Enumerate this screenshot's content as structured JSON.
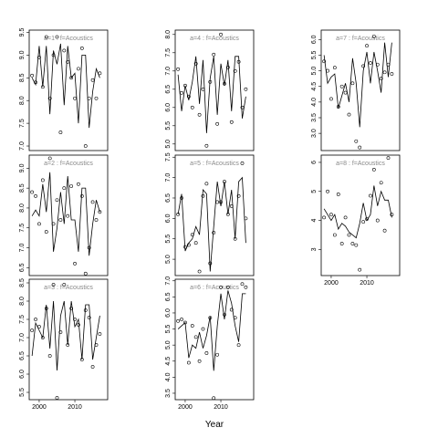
{
  "chart_data": [
    {
      "type": "scatter",
      "title": "a=1 : f=Acoustics",
      "x": [
        1998,
        1999,
        2000,
        2001,
        2002,
        2003,
        2004,
        2005,
        2006,
        2007,
        2008,
        2009,
        2010,
        2011,
        2012,
        2013,
        2014,
        2015,
        2016,
        2017
      ],
      "xlim": [
        1997.2,
        2019.2
      ],
      "ylim": [
        6.9,
        9.55
      ],
      "yticks": [
        {
          "value": 7,
          "label": "7.0"
        },
        7.5,
        {
          "value": 8,
          "label": "8.0"
        },
        8.5,
        {
          "value": 9,
          "label": "9.0"
        },
        9.5
      ],
      "series": [
        {
          "mark": "point",
          "color": "#000000",
          "values": [
            8.55,
            8.4,
            8.95,
            8.3,
            9.4,
            8.05,
            9.0,
            9.4,
            7.3,
            9.1,
            8.85,
            8.5,
            8.05,
            8.7,
            9.15,
            7.0,
            8.05,
            8.45,
            8.05,
            8.6
          ]
        },
        {
          "mark": "line",
          "color": "#000000",
          "values": [
            8.5,
            8.35,
            9.2,
            8.3,
            9.2,
            7.7,
            9.1,
            8.8,
            9.25,
            7.9,
            9.2,
            8.5,
            8.6,
            7.5,
            9.0,
            9.0,
            7.4,
            8.2,
            8.7,
            8.5
          ]
        }
      ]
    },
    {
      "type": "scatter",
      "title": "a=2 : f=Acoustics",
      "x": [
        1998,
        1999,
        2000,
        2001,
        2002,
        2003,
        2004,
        2005,
        2006,
        2007,
        2008,
        2009,
        2010,
        2011,
        2012,
        2013,
        2014,
        2015,
        2016,
        2017
      ],
      "xlim": [
        1997.2,
        2019.2
      ],
      "ylim": [
        6.3,
        9.33
      ],
      "yticks": [
        6.5,
        {
          "value": 7,
          "label": "7.0"
        },
        7.5,
        {
          "value": 8,
          "label": "8.0"
        },
        8.5,
        {
          "value": 9,
          "label": "9.0"
        }
      ],
      "series": [
        {
          "mark": "point",
          "color": "#000000",
          "values": [
            8.4,
            8.3,
            7.6,
            8.7,
            7.4,
            9.25,
            7.6,
            8.2,
            7.7,
            8.5,
            7.8,
            8.55,
            6.6,
            8.6,
            8.3,
            6.35,
            7.0,
            8.15,
            7.7,
            7.9
          ]
        },
        {
          "mark": "line",
          "color": "#000000",
          "values": [
            7.8,
            7.95,
            7.8,
            8.6,
            7.9,
            8.9,
            6.9,
            7.5,
            8.4,
            7.6,
            8.8,
            7.7,
            7.7,
            6.9,
            8.5,
            8.5,
            6.8,
            7.6,
            8.2,
            7.9
          ]
        }
      ]
    },
    {
      "type": "scatter",
      "title": "a=3 : f=Acoustics",
      "x": [
        1998,
        1999,
        2000,
        2001,
        2002,
        2003,
        2004,
        2005,
        2006,
        2007,
        2008,
        2009,
        2010,
        2011,
        2012,
        2013,
        2014,
        2015,
        2016,
        2017
      ],
      "xlim": [
        1997.2,
        2019.2
      ],
      "ylim": [
        5.3,
        8.6
      ],
      "xticks": [
        2000,
        2010
      ],
      "yticks": [
        5.5,
        {
          "value": 6,
          "label": "6.0"
        },
        6.5,
        {
          "value": 7,
          "label": "7.0"
        },
        7.5,
        {
          "value": 8,
          "label": "8.0"
        },
        8.5
      ],
      "series": [
        {
          "mark": "point",
          "color": "#000000",
          "values": [
            7.2,
            7.5,
            7.3,
            7.0,
            7.8,
            6.5,
            8.45,
            5.35,
            7.15,
            8.45,
            6.8,
            7.8,
            7.5,
            7.35,
            6.4,
            7.75,
            7.55,
            6.2,
            6.8,
            7.1
          ]
        },
        {
          "mark": "line",
          "color": "#000000",
          "values": [
            6.5,
            7.4,
            7.2,
            7.0,
            7.9,
            6.7,
            8.0,
            6.1,
            7.6,
            8.0,
            6.8,
            8.0,
            7.3,
            7.5,
            6.4,
            7.9,
            7.9,
            6.4,
            7.0,
            7.6
          ]
        }
      ]
    },
    {
      "type": "scatter",
      "title": "a=4 : f=Acoustics",
      "x": [
        1998,
        1999,
        2000,
        2001,
        2002,
        2003,
        2004,
        2005,
        2006,
        2007,
        2008,
        2009,
        2010,
        2011,
        2012,
        2013,
        2014,
        2015,
        2016,
        2017
      ],
      "xlim": [
        1997.2,
        2019.2
      ],
      "ylim": [
        4.82,
        8.12
      ],
      "yticks": [
        {
          "value": 5,
          "label": "5.0"
        },
        5.5,
        {
          "value": 6,
          "label": "6.0"
        },
        6.5,
        {
          "value": 7,
          "label": "7.0"
        },
        7.5,
        {
          "value": 8,
          "label": "8.0"
        }
      ],
      "series": [
        {
          "mark": "point",
          "color": "#000000",
          "values": [
            7.05,
            6.4,
            6.6,
            6.3,
            6.0,
            7.2,
            5.8,
            6.5,
            4.95,
            6.7,
            7.45,
            5.55,
            8.0,
            6.65,
            7.1,
            5.6,
            7.0,
            7.25,
            6.0,
            6.5
          ]
        },
        {
          "mark": "line",
          "color": "#000000",
          "values": [
            6.9,
            5.9,
            6.6,
            6.2,
            6.7,
            7.4,
            6.1,
            7.3,
            5.3,
            6.8,
            7.4,
            5.8,
            7.2,
            6.6,
            7.3,
            5.9,
            7.4,
            7.4,
            5.7,
            6.3
          ]
        }
      ]
    },
    {
      "type": "scatter",
      "title": "a=5 : f=Acoustics",
      "x": [
        1998,
        1999,
        2000,
        2001,
        2002,
        2003,
        2004,
        2005,
        2006,
        2007,
        2008,
        2009,
        2010,
        2011,
        2012,
        2013,
        2014,
        2015,
        2016,
        2017
      ],
      "xlim": [
        1997.2,
        2019.2
      ],
      "ylim": [
        4.6,
        7.55
      ],
      "yticks": [
        {
          "value": 5,
          "label": "5.0"
        },
        5.5,
        {
          "value": 6,
          "label": "6.0"
        },
        6.5,
        {
          "value": 7,
          "label": "7.0"
        },
        7.5
      ],
      "series": [
        {
          "mark": "point",
          "color": "#000000",
          "values": [
            6.1,
            6.5,
            5.3,
            5.35,
            5.6,
            5.4,
            4.7,
            6.55,
            6.85,
            4.9,
            5.65,
            6.4,
            6.4,
            6.9,
            6.1,
            6.3,
            5.5,
            6.55,
            7.35,
            6.0
          ]
        },
        {
          "mark": "line",
          "color": "#000000",
          "values": [
            6.1,
            6.6,
            5.2,
            5.4,
            5.5,
            5.8,
            5.6,
            6.7,
            6.6,
            4.7,
            5.8,
            6.9,
            6.3,
            6.9,
            6.1,
            6.7,
            5.5,
            6.9,
            7.0,
            5.4
          ]
        }
      ]
    },
    {
      "type": "scatter",
      "title": "a=6 : f=Acoustics",
      "x": [
        1998,
        1999,
        2000,
        2001,
        2002,
        2003,
        2004,
        2005,
        2006,
        2007,
        2008,
        2009,
        2010,
        2011,
        2012,
        2013,
        2014,
        2015,
        2016,
        2017
      ],
      "xlim": [
        1997.2,
        2019.2
      ],
      "ylim": [
        3.3,
        7.05
      ],
      "xticks": [
        2000,
        2010
      ],
      "xlabel": "Year",
      "yticks": [
        3.5,
        {
          "value": 4,
          "label": "4.0"
        },
        4.5,
        {
          "value": 5,
          "label": "5.0"
        },
        5.5,
        {
          "value": 6,
          "label": "6.0"
        },
        6.5,
        {
          "value": 7,
          "label": "7.0"
        }
      ],
      "series": [
        {
          "mark": "point",
          "color": "#000000",
          "values": [
            5.75,
            5.8,
            5.7,
            4.45,
            5.6,
            5.25,
            4.5,
            5.5,
            4.75,
            5.85,
            3.35,
            4.7,
            6.8,
            5.95,
            6.8,
            6.1,
            5.85,
            5.0,
            6.9,
            6.8
          ]
        },
        {
          "mark": "line",
          "color": "#000000",
          "values": [
            5.5,
            5.6,
            5.7,
            4.6,
            5.0,
            4.9,
            5.4,
            4.9,
            5.3,
            5.9,
            4.2,
            5.6,
            6.6,
            5.8,
            6.7,
            6.3,
            5.6,
            5.1,
            6.6,
            6.6
          ]
        }
      ]
    },
    {
      "type": "scatter",
      "title": "a=7 : f=Acoustics",
      "x": [
        1998,
        1999,
        2000,
        2001,
        2002,
        2003,
        2004,
        2005,
        2006,
        2007,
        2008,
        2009,
        2010,
        2011,
        2012,
        2013,
        2014,
        2015,
        2016,
        2017
      ],
      "xlim": [
        1997.2,
        2019.2
      ],
      "ylim": [
        2.45,
        6.3
      ],
      "yticks": [
        {
          "value": 3,
          "label": "3.0"
        },
        3.5,
        {
          "value": 4,
          "label": "4.0"
        },
        4.5,
        {
          "value": 5,
          "label": "5.0"
        },
        5.5,
        {
          "value": 6,
          "label": "6.0"
        }
      ],
      "series": [
        {
          "mark": "point",
          "color": "#000000",
          "values": [
            5.3,
            5.0,
            4.1,
            5.1,
            3.85,
            4.5,
            4.3,
            3.6,
            4.6,
            2.75,
            2.55,
            5.15,
            5.8,
            5.25,
            6.1,
            5.2,
            4.75,
            4.95,
            5.2,
            4.9
          ]
        },
        {
          "mark": "line",
          "color": "#000000",
          "values": [
            5.5,
            4.6,
            4.8,
            4.9,
            3.8,
            4.2,
            4.6,
            4.0,
            5.4,
            4.6,
            3.2,
            5.0,
            5.6,
            4.6,
            5.6,
            5.0,
            4.3,
            5.9,
            4.8,
            5.9
          ]
        }
      ]
    },
    {
      "type": "scatter",
      "title": "a=8 : f=Acoustics",
      "x": [
        1998,
        1999,
        2000,
        2001,
        2002,
        2003,
        2004,
        2005,
        2006,
        2007,
        2008,
        2009,
        2010,
        2011,
        2012,
        2013,
        2014,
        2015,
        2016,
        2017
      ],
      "xlim": [
        1997.2,
        2019.2
      ],
      "ylim": [
        2.1,
        6.25
      ],
      "xticks": [
        2000,
        2010
      ],
      "yticks": [
        3,
        4,
        5,
        6
      ],
      "series": [
        {
          "mark": "point",
          "color": "#000000",
          "values": [
            4.1,
            5.0,
            4.2,
            3.5,
            4.9,
            3.2,
            4.1,
            3.5,
            3.2,
            3.15,
            2.3,
            3.95,
            4.05,
            4.85,
            5.75,
            4.0,
            5.3,
            3.65,
            6.15,
            4.2
          ]
        },
        {
          "mark": "line",
          "color": "#000000",
          "values": [
            4.4,
            4.2,
            4.0,
            4.2,
            3.7,
            3.9,
            3.8,
            3.6,
            3.5,
            3.4,
            3.9,
            4.6,
            4.0,
            4.2,
            5.2,
            4.5,
            5.0,
            4.7,
            4.7,
            4.1
          ]
        }
      ]
    }
  ]
}
